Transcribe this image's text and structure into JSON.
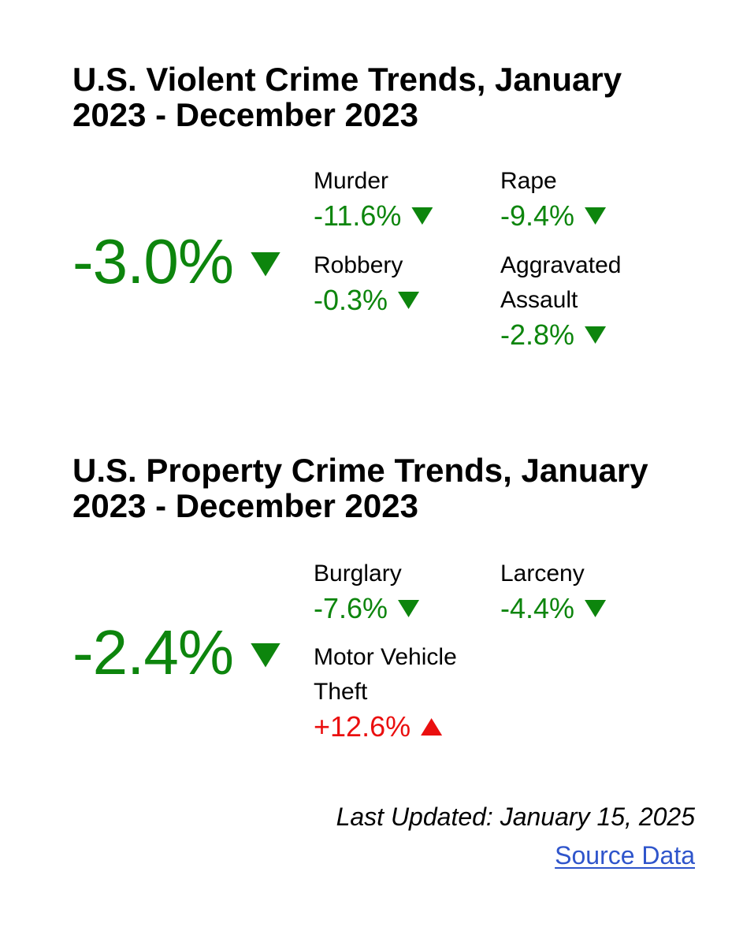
{
  "colors": {
    "green": "#0d850d",
    "red": "#ea0f0f",
    "blue": "#2f55cb",
    "text": "#000000",
    "background": "#ffffff"
  },
  "sections": [
    {
      "title": "U.S. Violent Crime Trends, January 2023 - December 2023",
      "overall": {
        "value": "-3.0%",
        "direction": "down"
      },
      "stats": [
        {
          "label": "Murder",
          "value": "-11.6%",
          "direction": "down"
        },
        {
          "label": "Rape",
          "value": "-9.4%",
          "direction": "down"
        },
        {
          "label": "Robbery",
          "value": "-0.3%",
          "direction": "down"
        },
        {
          "label": "Aggravated Assault",
          "value": "-2.8%",
          "direction": "down"
        }
      ]
    },
    {
      "title": "U.S. Property Crime Trends, January 2023 - December 2023",
      "overall": {
        "value": "-2.4%",
        "direction": "down"
      },
      "stats": [
        {
          "label": "Burglary",
          "value": "-7.6%",
          "direction": "down"
        },
        {
          "label": "Larceny",
          "value": "-4.4%",
          "direction": "down"
        },
        {
          "label": "Motor Vehicle Theft",
          "value": "+12.6%",
          "direction": "up"
        }
      ]
    }
  ],
  "footer": {
    "last_updated": "Last Updated: January 15, 2025",
    "source_link_label": "Source Data"
  },
  "chart_data": [
    {
      "type": "table",
      "title": "U.S. Violent Crime Trends, January 2023 - December 2023",
      "overall_change_pct": -3.0,
      "categories": [
        "Murder",
        "Rape",
        "Robbery",
        "Aggravated Assault"
      ],
      "values": [
        -11.6,
        -9.4,
        -0.3,
        -2.8
      ],
      "directions": [
        "down",
        "down",
        "down",
        "down"
      ],
      "unit": "percent change"
    },
    {
      "type": "table",
      "title": "U.S. Property Crime Trends, January 2023 - December 2023",
      "overall_change_pct": -2.4,
      "categories": [
        "Burglary",
        "Larceny",
        "Motor Vehicle Theft"
      ],
      "values": [
        -7.6,
        -4.4,
        12.6
      ],
      "directions": [
        "down",
        "down",
        "up"
      ],
      "unit": "percent change"
    }
  ]
}
